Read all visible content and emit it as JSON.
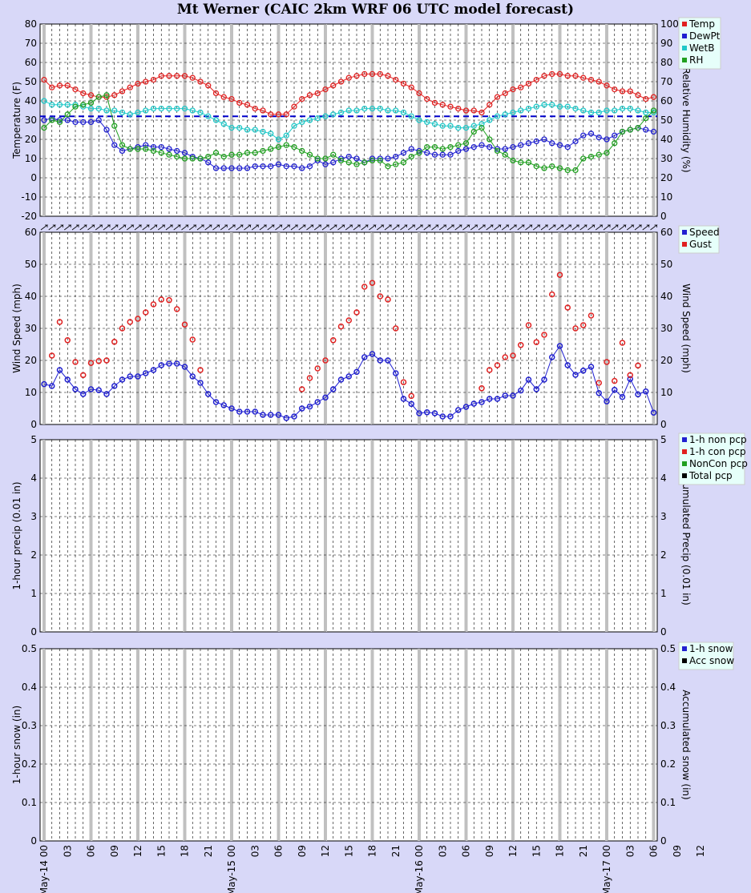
{
  "title": "Mt Werner (CAIC 2km WRF 06 UTC model forecast)",
  "colors": {
    "background": "#d8d8f8",
    "temp": "#e02020",
    "dewpt": "#2020d0",
    "wetb": "#20c8c8",
    "rh": "#20a020",
    "speed": "#2020d0",
    "gust": "#e02020",
    "freezing_line": "#0000cc",
    "day_line": "#c0c0c0"
  },
  "x_axis": {
    "hours": 79,
    "tick_labels": [
      "May-14 00",
      "03",
      "06",
      "09",
      "12",
      "15",
      "18",
      "21",
      "May-15 00",
      "03",
      "06",
      "09",
      "12",
      "15",
      "18",
      "21",
      "May-16 00",
      "03",
      "06",
      "09",
      "12",
      "15",
      "18",
      "21",
      "May-17 00",
      "03",
      "06",
      "09",
      "12"
    ]
  },
  "chart_data": [
    {
      "type": "line",
      "name": "temperature-panel",
      "ylabel": "Temperature (F)",
      "y2label": "Relative Humidity (%)",
      "ylim": [
        -20,
        80
      ],
      "y2lim": [
        0,
        100
      ],
      "yticks": [
        -20,
        -10,
        0,
        10,
        20,
        30,
        40,
        50,
        60,
        70,
        80
      ],
      "y2ticks": [
        0,
        10,
        20,
        30,
        40,
        50,
        60,
        70,
        80,
        90,
        100
      ],
      "reference_line": 32,
      "legend": [
        "Temp",
        "DewPt",
        "WetB",
        "RH"
      ],
      "series": [
        {
          "name": "Temp",
          "axis": "left",
          "values": [
            51,
            47,
            48,
            48,
            46,
            44,
            43,
            42,
            42,
            43,
            45,
            47,
            49,
            50,
            51,
            53,
            53,
            53,
            53,
            52,
            50,
            48,
            44,
            42,
            41,
            39,
            38,
            36,
            35,
            33,
            33,
            33,
            37,
            41,
            43,
            44,
            46,
            48,
            50,
            52,
            53,
            54,
            54,
            54,
            53,
            51,
            49,
            47,
            44,
            41,
            39,
            38,
            37,
            36,
            35,
            35,
            34,
            38,
            42,
            44,
            46,
            47,
            49,
            51,
            53,
            54,
            54,
            53,
            53,
            52,
            51,
            50,
            48,
            46,
            45,
            45,
            43,
            41,
            42
          ]
        },
        {
          "name": "DewPt",
          "axis": "left",
          "values": [
            30,
            31,
            30,
            30,
            29,
            29,
            29,
            30,
            25,
            17,
            14,
            15,
            16,
            17,
            16,
            16,
            15,
            14,
            13,
            11,
            10,
            8,
            5,
            5,
            5,
            5,
            5,
            6,
            6,
            6,
            7,
            6,
            6,
            5,
            6,
            9,
            7,
            8,
            10,
            11,
            10,
            8,
            10,
            10,
            10,
            11,
            13,
            15,
            14,
            13,
            12,
            12,
            12,
            14,
            15,
            16,
            17,
            16,
            15,
            15,
            16,
            17,
            18,
            19,
            20,
            18,
            17,
            16,
            19,
            22,
            23,
            21,
            20,
            22,
            24,
            25,
            26,
            25,
            24
          ]
        },
        {
          "name": "WetB",
          "axis": "left",
          "values": [
            40,
            38,
            38,
            38,
            38,
            37,
            36,
            36,
            35,
            35,
            34,
            33,
            34,
            35,
            36,
            36,
            36,
            36,
            36,
            35,
            34,
            32,
            30,
            28,
            26,
            26,
            25,
            25,
            24,
            23,
            20,
            22,
            27,
            29,
            30,
            31,
            32,
            33,
            34,
            35,
            35,
            36,
            36,
            36,
            35,
            35,
            34,
            32,
            30,
            29,
            28,
            27,
            27,
            26,
            26,
            27,
            28,
            30,
            32,
            33,
            34,
            35,
            36,
            37,
            38,
            38,
            37,
            37,
            36,
            35,
            34,
            34,
            35,
            35,
            36,
            36,
            35,
            34,
            34
          ]
        },
        {
          "name": "RH",
          "axis": "right",
          "values": [
            46,
            50,
            49,
            53,
            57,
            58,
            59,
            62,
            63,
            47,
            37,
            35,
            35,
            35,
            34,
            33,
            32,
            31,
            30,
            30,
            30,
            31,
            33,
            31,
            32,
            32,
            33,
            33,
            34,
            35,
            36,
            37,
            36,
            34,
            32,
            30,
            30,
            32,
            29,
            28,
            27,
            28,
            29,
            29,
            26,
            27,
            28,
            31,
            33,
            36,
            36,
            35,
            36,
            37,
            38,
            44,
            46,
            40,
            34,
            32,
            29,
            28,
            28,
            26,
            25,
            26,
            25,
            24,
            24,
            30,
            31,
            32,
            33,
            38,
            44,
            45,
            46,
            51,
            55
          ]
        }
      ]
    },
    {
      "type": "scatter",
      "name": "wind-panel",
      "ylabel": "Wind Speed (mph)",
      "y2label": "Wind Speed (mph)",
      "ylim": [
        0,
        60
      ],
      "yticks": [
        0,
        10,
        20,
        30,
        40,
        50,
        60
      ],
      "legend": [
        "Speed",
        "Gust"
      ],
      "series": [
        {
          "name": "Speed",
          "values": [
            12.6,
            12,
            17,
            14,
            11,
            9.5,
            11,
            10.7,
            9.5,
            12,
            14,
            15,
            15,
            16,
            17,
            18.5,
            19,
            19,
            18,
            15,
            13,
            9.5,
            7,
            6,
            5,
            4,
            4,
            4,
            3,
            3,
            3,
            2,
            2.5,
            5,
            5.6,
            7,
            8.4,
            11,
            14,
            15,
            16.4,
            21,
            22,
            20,
            20,
            16,
            8,
            6.4,
            3.5,
            3.8,
            3.5,
            2.5,
            2.5,
            4.5,
            5.5,
            6.5,
            7,
            8,
            8,
            9,
            9,
            10.6,
            14,
            11,
            14,
            21,
            24.5,
            18.5,
            15.5,
            16.8,
            18,
            9.8,
            7.2,
            10.8,
            8.6,
            14.2,
            9.4,
            10.3,
            3.7
          ]
        },
        {
          "name": "Gust",
          "values": [
            null,
            21.5,
            32,
            26.3,
            19.5,
            15.4,
            19.2,
            19.8,
            20,
            25.8,
            30,
            32,
            33,
            35,
            37.5,
            39,
            38.8,
            36,
            31.2,
            26.5,
            17,
            null,
            null,
            null,
            null,
            null,
            null,
            null,
            null,
            null,
            null,
            null,
            null,
            11,
            14.5,
            17.5,
            20,
            26.3,
            30.6,
            32.5,
            35,
            43,
            44.2,
            40,
            39,
            30,
            13.2,
            8.9,
            null,
            null,
            null,
            null,
            null,
            null,
            null,
            null,
            11.3,
            17,
            18.5,
            21,
            21.5,
            24.8,
            31,
            25.7,
            28,
            40.6,
            46.7,
            36.5,
            30,
            31,
            34,
            13,
            19.5,
            13.6,
            25.5,
            15.4,
            18.4,
            null,
            null
          ]
        }
      ]
    },
    {
      "type": "bar",
      "name": "precip-panel",
      "ylabel": "1-hour precip (0.01 in)",
      "y2label": "Accumulated Precip (0.01 in)",
      "ylim": [
        0,
        5
      ],
      "yticks": [
        0,
        1,
        2,
        3,
        4,
        5
      ],
      "legend": [
        "1-h non pcp",
        "1-h con pcp",
        "NonCon pcp",
        "Total pcp"
      ],
      "series": []
    },
    {
      "type": "bar",
      "name": "snow-panel",
      "ylabel": "1-hour snow (in)",
      "y2label": "Accumulated snow (in)",
      "ylim": [
        0,
        0.5
      ],
      "yticks": [
        "0",
        "0.1",
        "0.2",
        "0.3",
        "0.4",
        "0.5"
      ],
      "legend": [
        "1-h snow",
        "Acc snow"
      ],
      "series": []
    }
  ]
}
